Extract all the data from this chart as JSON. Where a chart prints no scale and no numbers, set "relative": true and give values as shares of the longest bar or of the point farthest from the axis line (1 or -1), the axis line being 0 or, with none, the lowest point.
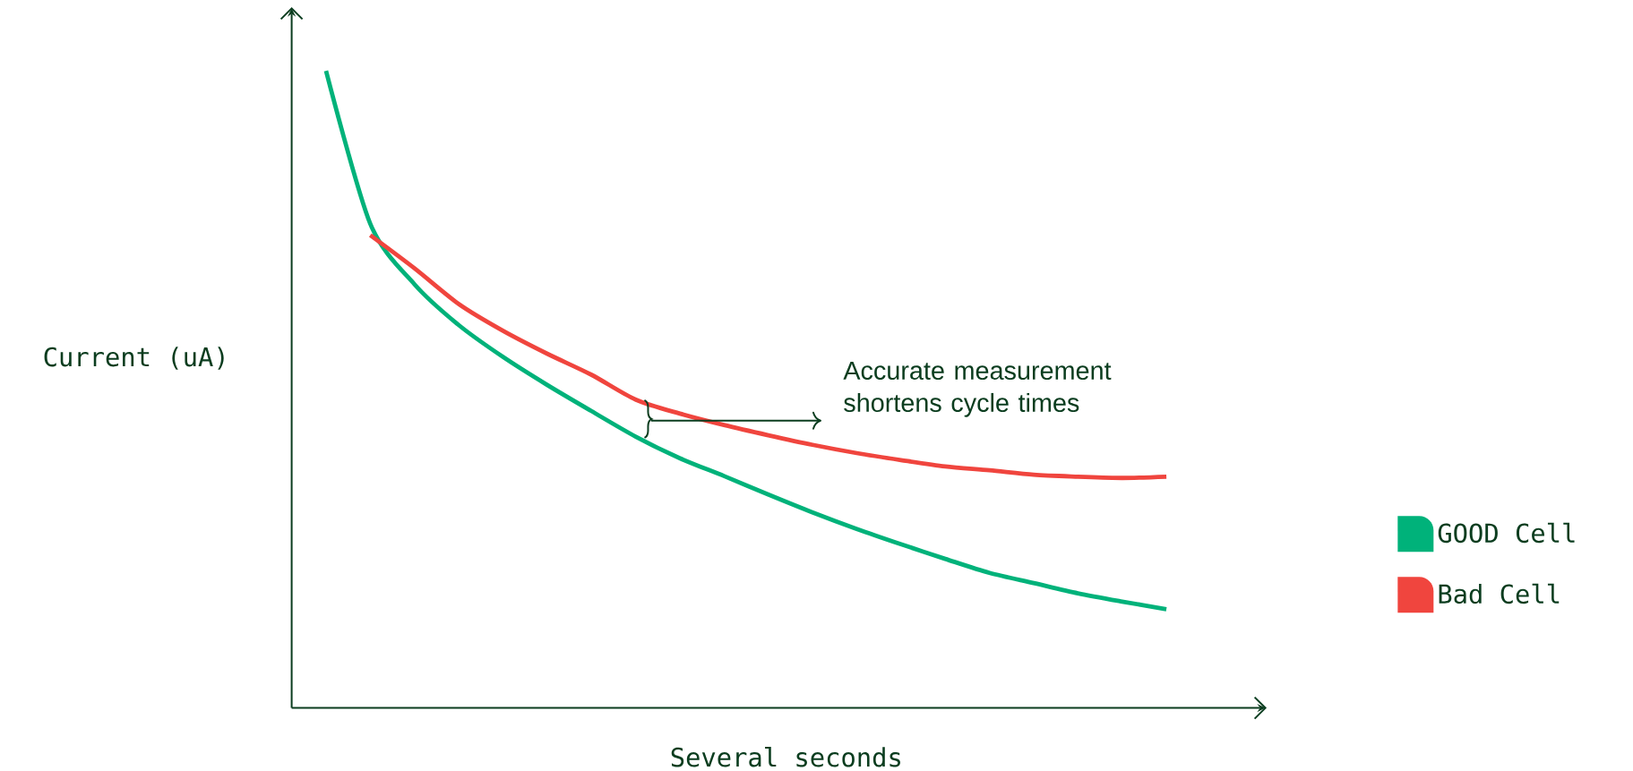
{
  "chart_data": {
    "type": "line",
    "relative": true,
    "xlabel": "Several seconds",
    "ylabel": "Current (uA)",
    "categories": [
      null,
      null,
      null,
      null,
      null,
      null,
      null,
      null,
      null,
      null,
      null,
      null,
      null,
      null,
      null,
      null,
      null,
      null,
      null,
      null
    ],
    "series": [
      {
        "name": "GOOD Cell",
        "color": "#00b27a",
        "values": [
          1.0,
          0.76,
          0.665,
          0.601,
          0.551,
          0.507,
          0.466,
          0.426,
          0.392,
          0.364,
          0.335,
          0.307,
          0.281,
          0.257,
          0.234,
          0.212,
          0.196,
          0.18,
          0.167,
          0.155
        ]
      },
      {
        "name": "Bad Cell",
        "color": "#f0453e",
        "values": [
          null,
          0.742,
          0.69,
          0.634,
          0.592,
          0.556,
          0.523,
          0.484,
          0.462,
          0.444,
          0.428,
          0.413,
          0.4,
          0.389,
          0.379,
          0.373,
          0.366,
          0.363,
          0.361,
          0.363
        ]
      }
    ],
    "legend": "right",
    "annotations": [
      "Accurate measurement shortens cycle times"
    ]
  }
}
